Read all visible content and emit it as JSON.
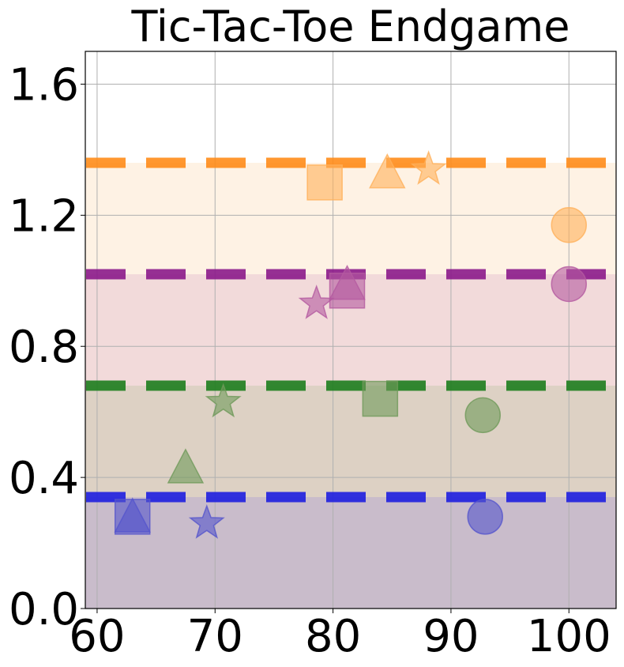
{
  "chart_data": {
    "type": "scatter",
    "title": "Tic-Tac-Toe Endgame",
    "xlabel": "",
    "ylabel": "",
    "xlim": [
      59,
      104
    ],
    "ylim": [
      0,
      1.7
    ],
    "xticks": [
      "60",
      "70",
      "80",
      "90",
      "100"
    ],
    "yticks": [
      "0.0",
      "0.4",
      "0.8",
      "1.2",
      "1.6"
    ],
    "grid": true,
    "bands": [
      {
        "low": 0.0,
        "high": 0.34,
        "fill": "#c9bccb",
        "line_color": "#1f1fe0"
      },
      {
        "low": 0.34,
        "high": 0.68,
        "fill": "#ddd1c4",
        "line_color": "#1e7e1e"
      },
      {
        "low": 0.68,
        "high": 1.02,
        "fill": "#f2dada",
        "line_color": "#8b1a8b"
      },
      {
        "low": 1.02,
        "high": 1.36,
        "fill": "#fef2e4",
        "line_color": "#ff8c1a"
      }
    ],
    "series": [
      {
        "color": "#5555cc",
        "points": [
          {
            "x": 63.0,
            "y": 0.28,
            "marker": "square"
          },
          {
            "x": 63.0,
            "y": 0.27,
            "marker": "triangle"
          },
          {
            "x": 69.3,
            "y": 0.26,
            "marker": "star"
          },
          {
            "x": 92.9,
            "y": 0.28,
            "marker": "circle"
          }
        ]
      },
      {
        "color": "#6f9a5a",
        "points": [
          {
            "x": 67.5,
            "y": 0.42,
            "marker": "triangle"
          },
          {
            "x": 70.7,
            "y": 0.63,
            "marker": "star"
          },
          {
            "x": 84.0,
            "y": 0.64,
            "marker": "square"
          },
          {
            "x": 92.7,
            "y": 0.59,
            "marker": "circle"
          }
        ]
      },
      {
        "color": "#b45aa0",
        "points": [
          {
            "x": 78.6,
            "y": 0.93,
            "marker": "star"
          },
          {
            "x": 81.2,
            "y": 0.97,
            "marker": "square"
          },
          {
            "x": 81.2,
            "y": 0.98,
            "marker": "triangle"
          },
          {
            "x": 100.0,
            "y": 0.99,
            "marker": "circle"
          }
        ]
      },
      {
        "color": "#ffb05a",
        "points": [
          {
            "x": 79.3,
            "y": 1.3,
            "marker": "square"
          },
          {
            "x": 84.6,
            "y": 1.32,
            "marker": "triangle"
          },
          {
            "x": 88.1,
            "y": 1.34,
            "marker": "star"
          },
          {
            "x": 100.0,
            "y": 1.17,
            "marker": "circle"
          }
        ]
      }
    ]
  }
}
